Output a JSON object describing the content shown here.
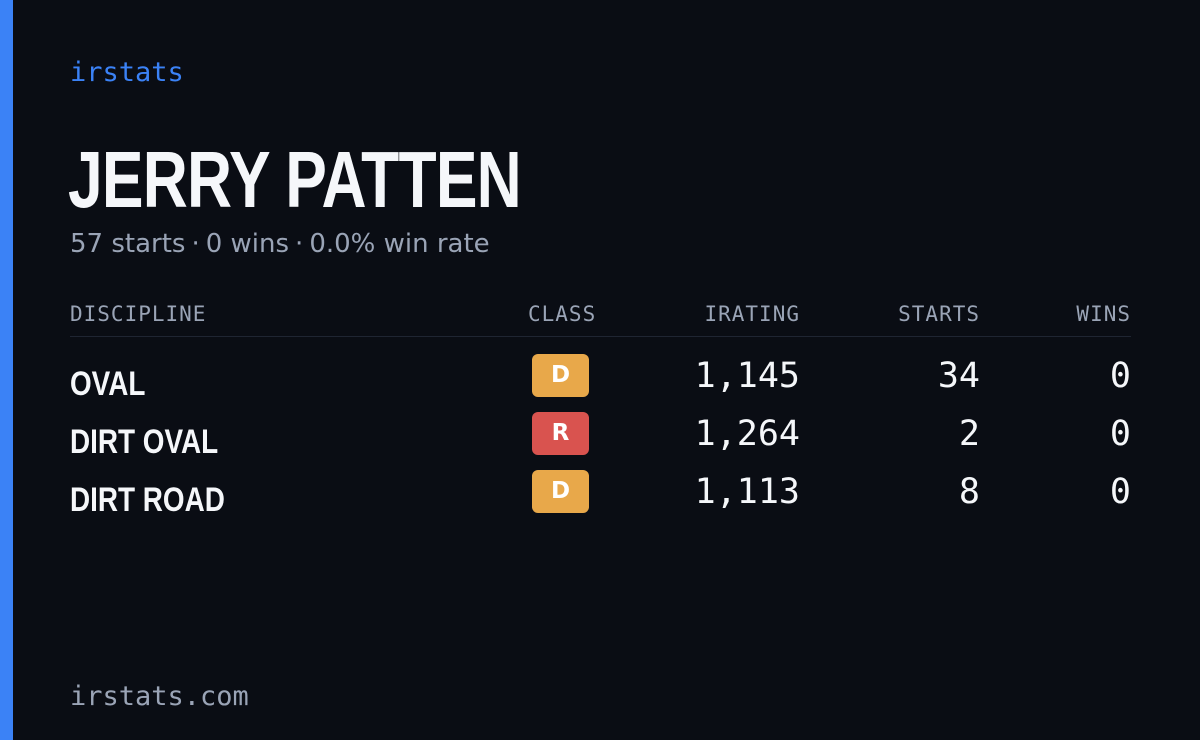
{
  "brand": "irstats",
  "driver": {
    "name": "JERRY PATTEN",
    "starts": "57 starts",
    "wins": "0 wins",
    "win_rate": "0.0% win rate",
    "separator": "·"
  },
  "table": {
    "headers": {
      "discipline": "DISCIPLINE",
      "class": "CLASS",
      "irating": "IRATING",
      "starts": "STARTS",
      "wins": "WINS"
    },
    "rows": [
      {
        "discipline": "OVAL",
        "class": "D",
        "class_color": "#e8a84a",
        "irating": "1,145",
        "starts": "34",
        "wins": "0"
      },
      {
        "discipline": "DIRT OVAL",
        "class": "R",
        "class_color": "#d9534f",
        "irating": "1,264",
        "starts": "2",
        "wins": "0"
      },
      {
        "discipline": "DIRT ROAD",
        "class": "D",
        "class_color": "#e8a84a",
        "irating": "1,113",
        "starts": "8",
        "wins": "0"
      }
    ]
  },
  "footer": "irstats.com",
  "colors": {
    "accent": "#3b82f6",
    "background": "#0a0d14"
  }
}
